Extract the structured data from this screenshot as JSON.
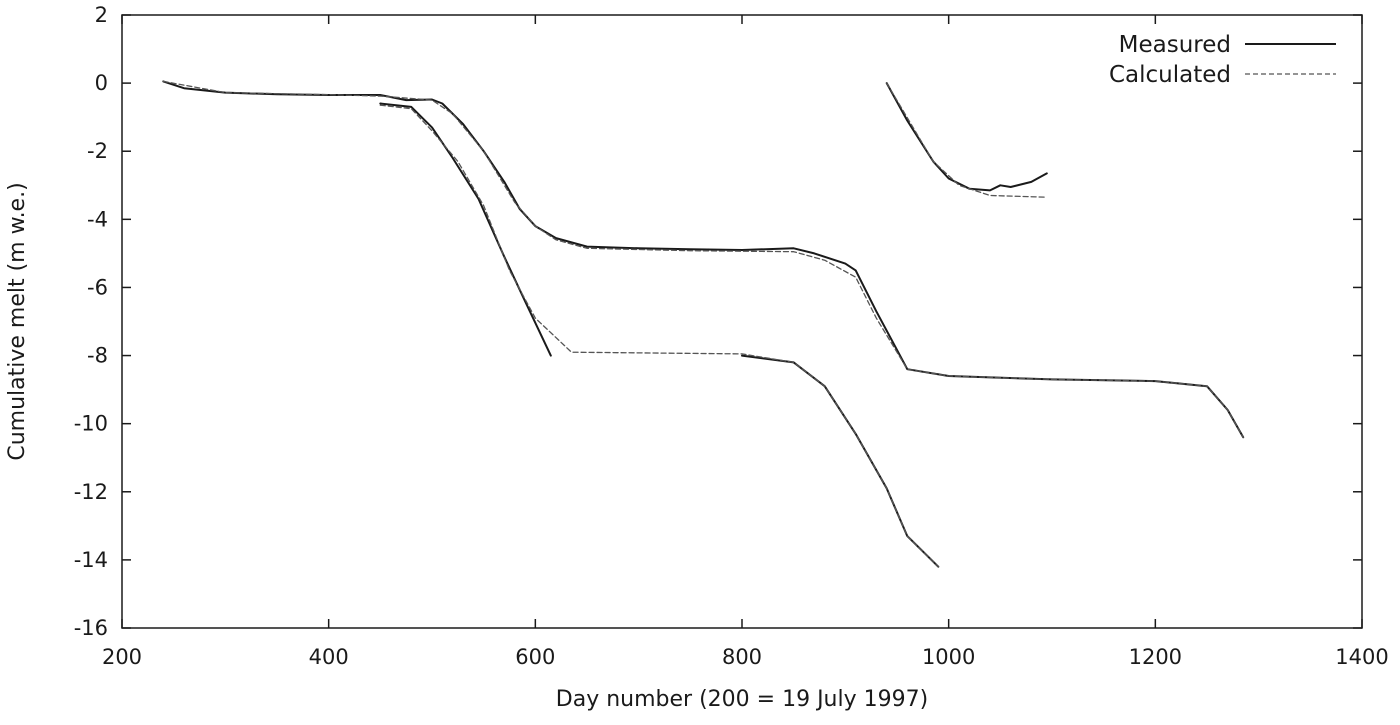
{
  "chart_data": {
    "type": "line",
    "xlabel": "Day number (200 = 19 July 1997)",
    "ylabel": "Cumulative melt (m w.e.)",
    "xlim": [
      200,
      1400
    ],
    "ylim": [
      -16,
      2
    ],
    "xticks": [
      200,
      400,
      600,
      800,
      1000,
      1200,
      1400
    ],
    "yticks": [
      2,
      0,
      -2,
      -4,
      -6,
      -8,
      -10,
      -12,
      -14,
      -16
    ],
    "grid": false,
    "legend_position": "top-right",
    "legend": [
      {
        "label": "Measured",
        "style": "solid"
      },
      {
        "label": "Calculated",
        "style": "dashed"
      }
    ],
    "series": [
      {
        "name": "Measured",
        "style": "solid",
        "color": "#1a1a1a",
        "segments": [
          [
            [
              240,
              0.05
            ],
            [
              260,
              -0.15
            ],
            [
              300,
              -0.28
            ],
            [
              350,
              -0.33
            ],
            [
              400,
              -0.35
            ],
            [
              450,
              -0.35
            ],
            [
              475,
              -0.5
            ],
            [
              500,
              -0.48
            ],
            [
              510,
              -0.6
            ],
            [
              530,
              -1.2
            ],
            [
              550,
              -2.0
            ],
            [
              570,
              -2.9
            ],
            [
              585,
              -3.7
            ],
            [
              600,
              -4.2
            ],
            [
              620,
              -4.55
            ],
            [
              650,
              -4.8
            ],
            [
              700,
              -4.85
            ],
            [
              750,
              -4.88
            ],
            [
              800,
              -4.9
            ],
            [
              850,
              -4.85
            ],
            [
              870,
              -5.0
            ],
            [
              900,
              -5.3
            ],
            [
              910,
              -5.5
            ],
            [
              930,
              -6.7
            ],
            [
              960,
              -8.4
            ],
            [
              1000,
              -8.6
            ],
            [
              1100,
              -8.7
            ],
            [
              1200,
              -8.75
            ],
            [
              1250,
              -8.9
            ],
            [
              1270,
              -9.6
            ],
            [
              1285,
              -10.4
            ]
          ],
          [
            [
              450,
              -0.6
            ],
            [
              480,
              -0.7
            ],
            [
              500,
              -1.3
            ],
            [
              520,
              -2.2
            ],
            [
              545,
              -3.4
            ],
            [
              570,
              -5.1
            ],
            [
              590,
              -6.4
            ],
            [
              615,
              -8.0
            ]
          ],
          [
            [
              800,
              -8.0
            ],
            [
              850,
              -8.2
            ],
            [
              880,
              -8.9
            ],
            [
              910,
              -10.3
            ],
            [
              940,
              -11.9
            ],
            [
              960,
              -13.3
            ],
            [
              990,
              -14.2
            ]
          ],
          [
            [
              940,
              0.0
            ],
            [
              960,
              -1.1
            ],
            [
              985,
              -2.3
            ],
            [
              1000,
              -2.8
            ],
            [
              1020,
              -3.1
            ],
            [
              1040,
              -3.15
            ],
            [
              1050,
              -3.0
            ],
            [
              1060,
              -3.05
            ],
            [
              1080,
              -2.9
            ],
            [
              1095,
              -2.65
            ]
          ]
        ]
      },
      {
        "name": "Calculated",
        "style": "dashed",
        "color": "#555555",
        "segments": [
          [
            [
              240,
              0.05
            ],
            [
              300,
              -0.28
            ],
            [
              400,
              -0.34
            ],
            [
              450,
              -0.38
            ],
            [
              500,
              -0.5
            ],
            [
              520,
              -0.9
            ],
            [
              550,
              -2.0
            ],
            [
              580,
              -3.5
            ],
            [
              600,
              -4.2
            ],
            [
              620,
              -4.6
            ],
            [
              650,
              -4.85
            ],
            [
              750,
              -4.92
            ],
            [
              850,
              -4.95
            ],
            [
              880,
              -5.2
            ],
            [
              910,
              -5.7
            ],
            [
              930,
              -6.9
            ],
            [
              960,
              -8.4
            ],
            [
              1000,
              -8.6
            ],
            [
              1100,
              -8.7
            ],
            [
              1200,
              -8.75
            ],
            [
              1250,
              -8.9
            ],
            [
              1270,
              -9.6
            ],
            [
              1285,
              -10.4
            ]
          ],
          [
            [
              450,
              -0.65
            ],
            [
              480,
              -0.75
            ],
            [
              500,
              -1.4
            ],
            [
              525,
              -2.3
            ],
            [
              550,
              -3.6
            ],
            [
              575,
              -5.5
            ],
            [
              600,
              -6.9
            ],
            [
              635,
              -7.9
            ],
            [
              800,
              -7.95
            ],
            [
              850,
              -8.2
            ],
            [
              880,
              -8.9
            ],
            [
              910,
              -10.3
            ],
            [
              940,
              -11.9
            ],
            [
              960,
              -13.3
            ],
            [
              990,
              -14.2
            ]
          ],
          [
            [
              940,
              0.0
            ],
            [
              985,
              -2.3
            ],
            [
              1010,
              -3.0
            ],
            [
              1040,
              -3.3
            ],
            [
              1095,
              -3.35
            ]
          ]
        ]
      }
    ]
  }
}
